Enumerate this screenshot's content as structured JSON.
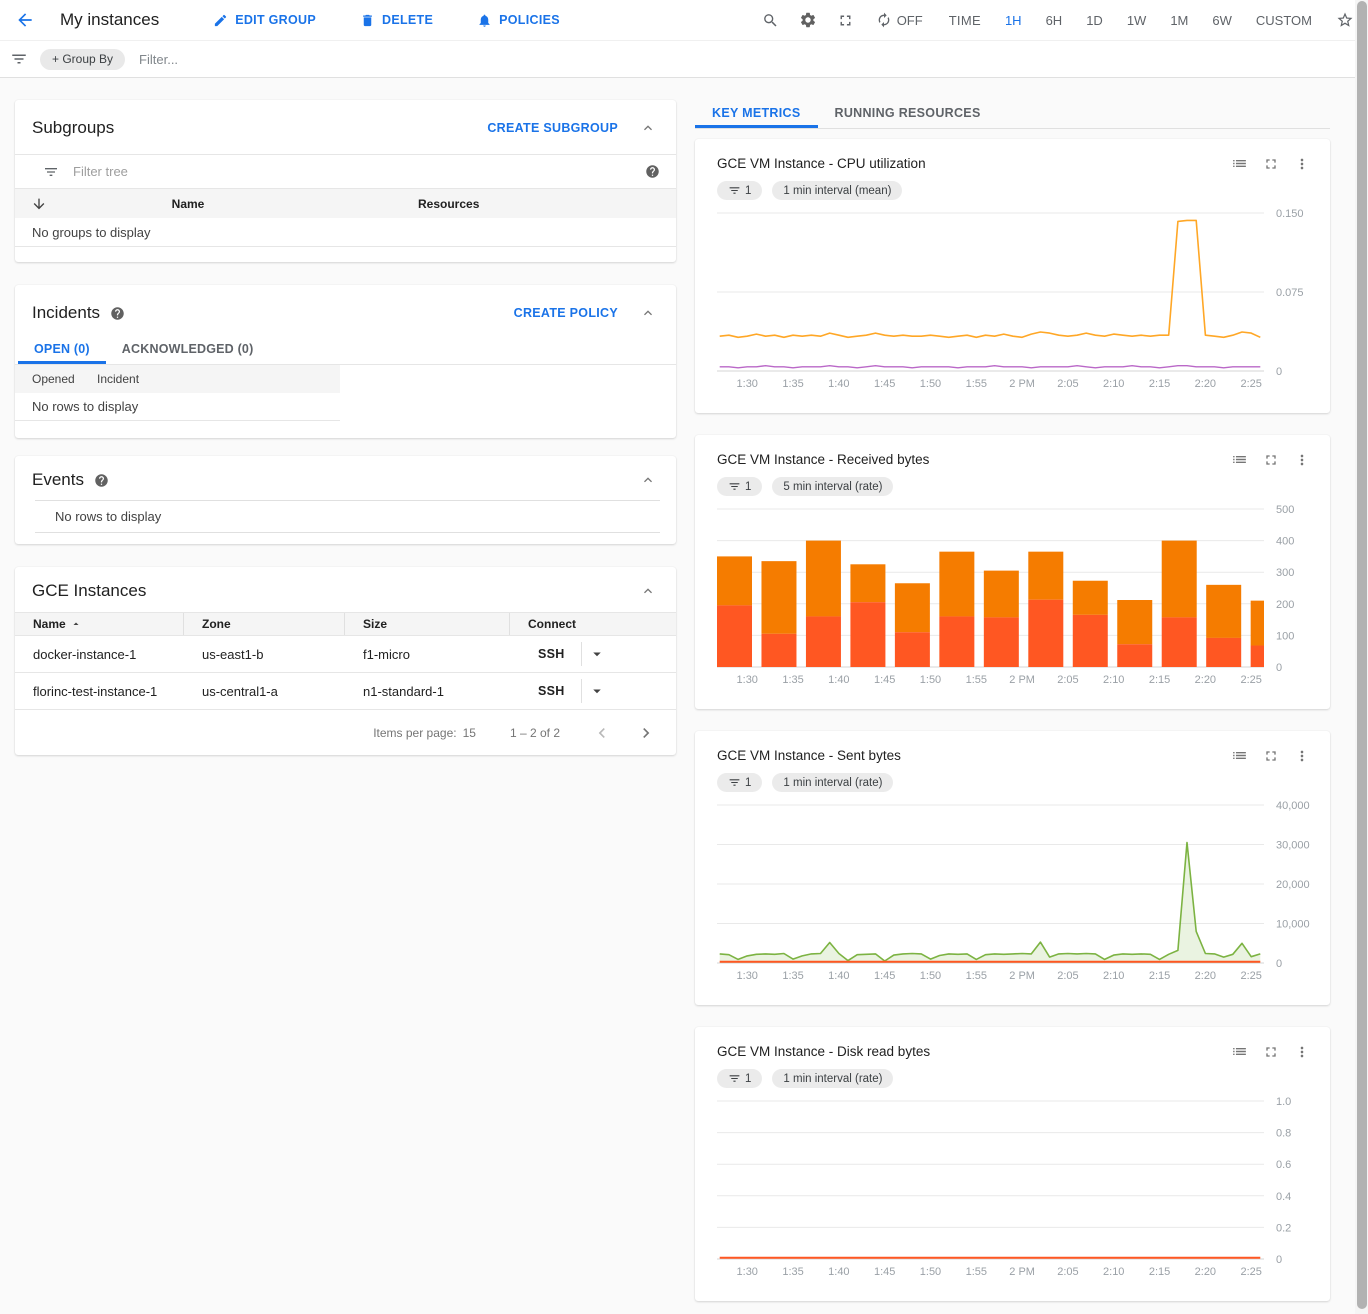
{
  "header": {
    "title": "My instances",
    "actions": [
      {
        "label": "EDIT GROUP"
      },
      {
        "label": "DELETE"
      },
      {
        "label": "POLICIES"
      }
    ],
    "refresh_label": "OFF",
    "time_label": "TIME",
    "time_ranges": [
      "1H",
      "6H",
      "1D",
      "1W",
      "1M",
      "6W",
      "CUSTOM"
    ],
    "selected_range": "1H",
    "accent_color": "#1a73e8"
  },
  "filter_bar": {
    "group_by_label": "+ Group By",
    "filter_placeholder": "Filter..."
  },
  "subgroups": {
    "title": "Subgroups",
    "action_label": "CREATE SUBGROUP",
    "filter_placeholder": "Filter tree",
    "columns": [
      "Name",
      "Resources"
    ],
    "empty_text": "No groups to display"
  },
  "incidents": {
    "title": "Incidents",
    "action_label": "CREATE POLICY",
    "tabs": [
      "OPEN (0)",
      "ACKNOWLEDGED (0)"
    ],
    "selected_tab": "OPEN (0)",
    "columns": [
      "Opened",
      "Incident"
    ],
    "empty_text": "No rows to display"
  },
  "events": {
    "title": "Events",
    "empty_text": "No rows to display"
  },
  "instances": {
    "title": "GCE Instances",
    "columns": [
      "Name",
      "Zone",
      "Size",
      "Connect"
    ],
    "rows": [
      {
        "name": "docker-instance-1",
        "zone": "us-east1-b",
        "size": "f1-micro",
        "connect": "SSH"
      },
      {
        "name": "florinc-test-instance-1",
        "zone": "us-central1-a",
        "size": "n1-standard-1",
        "connect": "SSH"
      }
    ],
    "pagination": {
      "items_per_page_label": "Items per page:",
      "items_per_page": "15",
      "range": "1 – 2 of 2"
    }
  },
  "metrics": {
    "tabs": [
      "KEY METRICS",
      "RUNNING RESOURCES"
    ],
    "selected_tab": "KEY METRICS"
  },
  "chart_data": [
    {
      "type": "line",
      "title": "GCE VM Instance - CPU utilization",
      "filter_count": "1",
      "interval_label": "1 min interval (mean)",
      "x_start_min": 87,
      "x_domain": [
        86.7,
        146.4
      ],
      "x_tick_minutes": [
        90,
        95,
        100,
        105,
        110,
        115,
        120,
        125,
        130,
        135,
        140,
        145
      ],
      "x_tick_labels": [
        "1:30",
        "1:35",
        "1:40",
        "1:45",
        "1:50",
        "1:55",
        "2 PM",
        "2:05",
        "2:10",
        "2:15",
        "2:20",
        "2:25"
      ],
      "ylim": [
        0,
        0.15
      ],
      "y_ticks": [
        {
          "value": 0,
          "label": "0"
        },
        {
          "value": 0.075,
          "label": "0.075"
        },
        {
          "value": 0.15,
          "label": "0.150"
        }
      ],
      "series": [
        {
          "name": "instance-cpu-low",
          "color": "#BA68C8",
          "width": 1.4,
          "values": [
            0.004,
            0.004,
            0.003,
            0.004,
            0.004,
            0.005,
            0.004,
            0.004,
            0.003,
            0.004,
            0.004,
            0.004,
            0.005,
            0.004,
            0.004,
            0.003,
            0.004,
            0.005,
            0.004,
            0.004,
            0.004,
            0.003,
            0.004,
            0.004,
            0.004,
            0.004,
            0.003,
            0.004,
            0.004,
            0.004,
            0.005,
            0.004,
            0.004,
            0.004,
            0.003,
            0.004,
            0.004,
            0.004,
            0.004,
            0.005,
            0.004,
            0.003,
            0.004,
            0.004,
            0.004,
            0.005,
            0.004,
            0.004,
            0.003,
            0.004,
            0.005,
            0.005,
            0.004,
            0.004,
            0.004,
            0.003,
            0.004,
            0.004,
            0.004,
            0.004
          ]
        },
        {
          "name": "instance-cpu-main",
          "color": "#FFA726",
          "width": 1.6,
          "values": [
            0.033,
            0.034,
            0.032,
            0.033,
            0.035,
            0.033,
            0.034,
            0.032,
            0.034,
            0.033,
            0.034,
            0.033,
            0.036,
            0.034,
            0.032,
            0.033,
            0.034,
            0.036,
            0.034,
            0.033,
            0.034,
            0.033,
            0.033,
            0.034,
            0.033,
            0.032,
            0.033,
            0.034,
            0.032,
            0.034,
            0.033,
            0.035,
            0.033,
            0.032,
            0.035,
            0.037,
            0.036,
            0.034,
            0.033,
            0.034,
            0.036,
            0.034,
            0.033,
            0.035,
            0.034,
            0.033,
            0.034,
            0.033,
            0.034,
            0.034,
            0.142,
            0.143,
            0.143,
            0.034,
            0.033,
            0.032,
            0.034,
            0.037,
            0.036,
            0.032
          ]
        }
      ]
    },
    {
      "type": "stacked_bar",
      "title": "GCE VM Instance - Received bytes",
      "filter_count": "1",
      "interval_label": "5 min interval (rate)",
      "x_start_min": 87,
      "x_domain": [
        86.7,
        146.4
      ],
      "x_tick_minutes": [
        90,
        95,
        100,
        105,
        110,
        115,
        120,
        125,
        130,
        135,
        140,
        145
      ],
      "x_tick_labels": [
        "1:30",
        "1:35",
        "1:40",
        "1:45",
        "1:50",
        "1:55",
        "2 PM",
        "2:05",
        "2:10",
        "2:15",
        "2:20",
        "2:25"
      ],
      "ylim": [
        0,
        500
      ],
      "y_ticks": [
        {
          "value": 0,
          "label": "0"
        },
        {
          "value": 100,
          "label": "100"
        },
        {
          "value": 200,
          "label": "200"
        },
        {
          "value": 300,
          "label": "300"
        },
        {
          "value": 400,
          "label": "400"
        },
        {
          "value": 500,
          "label": "500"
        }
      ],
      "bars": {
        "bottom_color": "#FF5722",
        "top_color": "#F57C00",
        "bottom": [
          195,
          105,
          160,
          205,
          110,
          160,
          157,
          213,
          165,
          72,
          157,
          92,
          68
        ],
        "top": [
          155,
          230,
          240,
          120,
          155,
          205,
          148,
          152,
          108,
          140,
          243,
          168,
          142
        ]
      }
    },
    {
      "type": "area_line",
      "title": "GCE VM Instance - Sent bytes",
      "filter_count": "1",
      "interval_label": "1 min interval (rate)",
      "x_start_min": 87,
      "x_domain": [
        86.7,
        146.4
      ],
      "x_tick_minutes": [
        90,
        95,
        100,
        105,
        110,
        115,
        120,
        125,
        130,
        135,
        140,
        145
      ],
      "x_tick_labels": [
        "1:30",
        "1:35",
        "1:40",
        "1:45",
        "1:50",
        "1:55",
        "2 PM",
        "2:05",
        "2:10",
        "2:15",
        "2:20",
        "2:25"
      ],
      "ylim": [
        0,
        40000
      ],
      "y_ticks": [
        {
          "value": 0,
          "label": "0"
        },
        {
          "value": 10000,
          "label": "10,000"
        },
        {
          "value": 20000,
          "label": "20,000"
        },
        {
          "value": 30000,
          "label": "30,000"
        },
        {
          "value": 40000,
          "label": "40,000"
        }
      ],
      "series": [
        {
          "name": "sent-bytes",
          "color": "#7CB342",
          "width": 1.6,
          "fill": true,
          "values": [
            2300,
            2100,
            900,
            1800,
            2200,
            2300,
            2200,
            2400,
            1000,
            1800,
            2300,
            2400,
            5200,
            2400,
            600,
            2100,
            2200,
            2300,
            500,
            2000,
            2300,
            2400,
            2300,
            1000,
            1900,
            2300,
            2200,
            2300,
            900,
            2100,
            2300,
            2200,
            2300,
            2400,
            2300,
            5300,
            1500,
            2300,
            2400,
            2300,
            2400,
            2300,
            900,
            2000,
            2300,
            2200,
            2300,
            2200,
            900,
            2200,
            3200,
            30500,
            8000,
            2400,
            2300,
            1500,
            2200,
            5000,
            1600,
            2300
          ]
        },
        {
          "name": "sent-bytes-low",
          "color": "#FF5722",
          "width": 2,
          "constant": 300
        }
      ]
    },
    {
      "type": "line",
      "title": "GCE VM Instance - Disk read bytes",
      "filter_count": "1",
      "interval_label": "1 min interval (rate)",
      "x_start_min": 87,
      "x_domain": [
        86.7,
        146.4
      ],
      "x_tick_minutes": [
        90,
        95,
        100,
        105,
        110,
        115,
        120,
        125,
        130,
        135,
        140,
        145
      ],
      "x_tick_labels": [
        "1:30",
        "1:35",
        "1:40",
        "1:45",
        "1:50",
        "1:55",
        "2 PM",
        "2:05",
        "2:10",
        "2:15",
        "2:20",
        "2:25"
      ],
      "ylim": [
        0,
        1.0
      ],
      "y_ticks": [
        {
          "value": 0,
          "label": "0"
        },
        {
          "value": 0.2,
          "label": "0.2"
        },
        {
          "value": 0.4,
          "label": "0.4"
        },
        {
          "value": 0.6,
          "label": "0.6"
        },
        {
          "value": 0.8,
          "label": "0.8"
        },
        {
          "value": 1.0,
          "label": "1.0"
        }
      ],
      "series": [
        {
          "name": "disk-read-bytes",
          "color": "#FF5722",
          "width": 2,
          "constant": 0.008
        }
      ]
    }
  ]
}
